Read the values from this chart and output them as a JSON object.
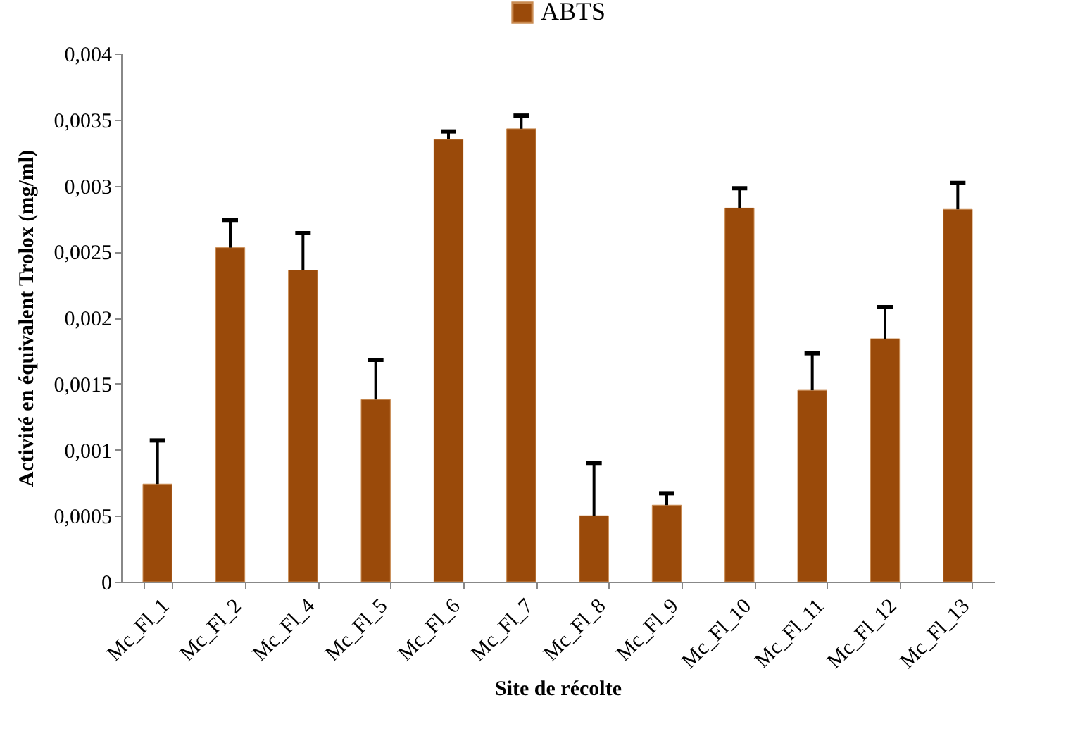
{
  "chart_data": {
    "type": "bar",
    "xlabel": "Site de récolte",
    "ylabel": "Activité en équivalent Trolox (mg/ml)",
    "categories": [
      "Mc_Fl_1",
      "Mc_Fl_2",
      "Mc_Fl_4",
      "Mc_Fl_5",
      "Mc_Fl_6",
      "Mc_Fl_7",
      "Mc_Fl_8",
      "Mc_Fl_9",
      "Mc_Fl_10",
      "Mc_Fl_11",
      "Mc_Fl_12",
      "Mc_Fl_13"
    ],
    "series": [
      {
        "name": "ABTS",
        "color": "#9a4a0a",
        "values": [
          0.00074,
          0.00253,
          0.00236,
          0.00138,
          0.00335,
          0.00343,
          0.0005,
          0.00058,
          0.00283,
          0.00145,
          0.00184,
          0.00282
        ],
        "errors": [
          [
            0.00074,
            0.00107
          ],
          [
            0.00253,
            0.00274
          ],
          [
            0.00236,
            0.00264
          ],
          [
            0.00138,
            0.00168
          ],
          [
            0.00335,
            0.00341
          ],
          [
            0.00343,
            0.00353
          ],
          [
            0.0005,
            0.0009
          ],
          [
            0.00058,
            0.00067
          ],
          [
            0.00283,
            0.00298
          ],
          [
            0.00145,
            0.00173
          ],
          [
            0.00184,
            0.00208
          ],
          [
            0.00282,
            0.00302
          ]
        ]
      }
    ],
    "ylim": [
      0,
      0.004
    ],
    "yticks": [
      0,
      {
        "value": 0.0005,
        "label": "0,0005"
      },
      {
        "value": 0.001,
        "label": "0,001"
      },
      {
        "value": 0.0015,
        "label": "0,0015"
      },
      {
        "value": 0.002,
        "label": "0,002"
      },
      {
        "value": 0.0025,
        "label": "0,0025"
      },
      {
        "value": 0.003,
        "label": "0,003"
      },
      {
        "value": 0.0035,
        "label": "0,0035"
      },
      {
        "value": 0.004,
        "label": "0,004"
      }
    ],
    "legend": "top"
  }
}
